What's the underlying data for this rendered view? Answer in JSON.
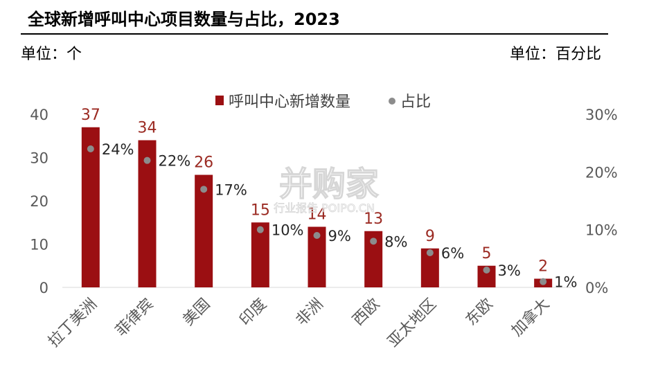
{
  "header": {
    "title": "全球新增呼叫中心项目数量与占比，2023",
    "unit_left": "单位：个",
    "unit_right": "单位：百分比"
  },
  "watermark": {
    "main": "并购家",
    "sub": "行业报告 POIPO.CN"
  },
  "chart_data": {
    "type": "bar",
    "categories": [
      "拉丁美洲",
      "菲律宾",
      "美国",
      "印度",
      "非洲",
      "西欧",
      "亚太地区",
      "东欧",
      "加拿大"
    ],
    "series": [
      {
        "name": "呼叫中心新增数量",
        "axis": "left",
        "kind": "bar",
        "values": [
          37,
          34,
          26,
          15,
          14,
          13,
          9,
          5,
          2
        ],
        "labels": [
          "37",
          "34",
          "26",
          "15",
          "14",
          "13",
          "9",
          "5",
          "2"
        ]
      },
      {
        "name": "占比",
        "axis": "right",
        "kind": "scatter",
        "values": [
          24,
          22,
          17,
          10,
          9,
          8,
          6,
          3,
          1
        ],
        "labels": [
          "24%",
          "22%",
          "17%",
          "10%",
          "9%",
          "8%",
          "6%",
          "3%",
          "1%"
        ]
      }
    ],
    "y_left": {
      "min": 0,
      "max": 40,
      "ticks": [
        "0",
        "10",
        "20",
        "30",
        "40"
      ]
    },
    "y_right": {
      "min": 0,
      "max": 30,
      "ticks": [
        "0%",
        "10%",
        "20%",
        "30%"
      ]
    },
    "legend_position": "top-center",
    "grid": false,
    "colors": {
      "bar": "#9b0f12",
      "dot": "#8c8c8c",
      "bar_label": "#9b2a22",
      "axis": "#595959"
    }
  }
}
